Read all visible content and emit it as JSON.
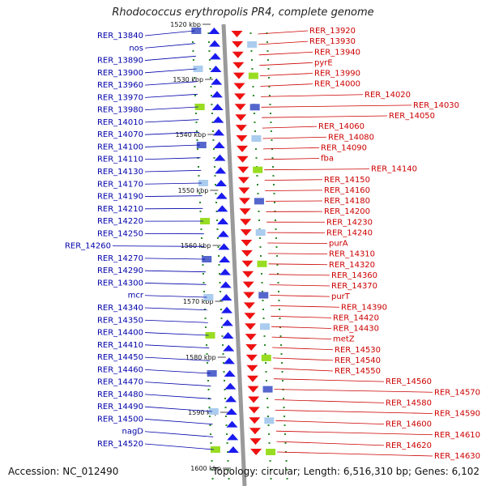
{
  "title": "Rhodococcus erythropolis PR4, complete genome",
  "accession": "Accession: NC_012490",
  "topology": "Topology: circular; Length: 6,516,310 bp; Genes: 6,102",
  "colors": {
    "left_labels": "#0000aa",
    "right_labels": "#cc0000",
    "forward_arrow": "#1a1aee",
    "reverse_arrow": "#ee1111",
    "axis": "#9a9a9a"
  },
  "ticks": [
    "1520 kbp",
    "1530 kbp",
    "1540 kbp",
    "1550 kbp",
    "1560 kbp",
    "1570 kbp",
    "1580 kbp",
    "1590 kbp",
    "1600 kbp"
  ],
  "left_genes": [
    "RER_13840",
    "nos",
    "RER_13890",
    "RER_13900",
    "RER_13960",
    "RER_13970",
    "RER_13980",
    "RER_14010",
    "RER_14070",
    "RER_14100",
    "RER_14110",
    "RER_14130",
    "RER_14170",
    "RER_14190",
    "RER_14210",
    "RER_14220",
    "RER_14250",
    "RER_14260",
    "RER_14270",
    "RER_14290",
    "RER_14300",
    "mcr",
    "RER_14340",
    "RER_14350",
    "RER_14400",
    "RER_14410",
    "RER_14450",
    "RER_14460",
    "RER_14470",
    "RER_14480",
    "RER_14490",
    "RER_14500",
    "nagD",
    "RER_14520"
  ],
  "right_genes": [
    "RER_13920",
    "RER_13930",
    "RER_13940",
    "pyrE",
    "RER_13990",
    "RER_14000",
    "RER_14020",
    "RER_14030",
    "RER_14050",
    "RER_14060",
    "RER_14080",
    "RER_14090",
    "fba",
    "RER_14140",
    "RER_14150",
    "RER_14160",
    "RER_14180",
    "RER_14200",
    "RER_14230",
    "RER_14240",
    "purA",
    "RER_14310",
    "RER_14320",
    "RER_14360",
    "RER_14370",
    "purT",
    "RER_14390",
    "RER_14420",
    "RER_14430",
    "metZ",
    "RER_14530",
    "RER_14540",
    "RER_14550",
    "RER_14560",
    "RER_14570",
    "RER_14580",
    "RER_14590",
    "RER_14600",
    "RER_14610",
    "RER_14620",
    "RER_14630"
  ]
}
